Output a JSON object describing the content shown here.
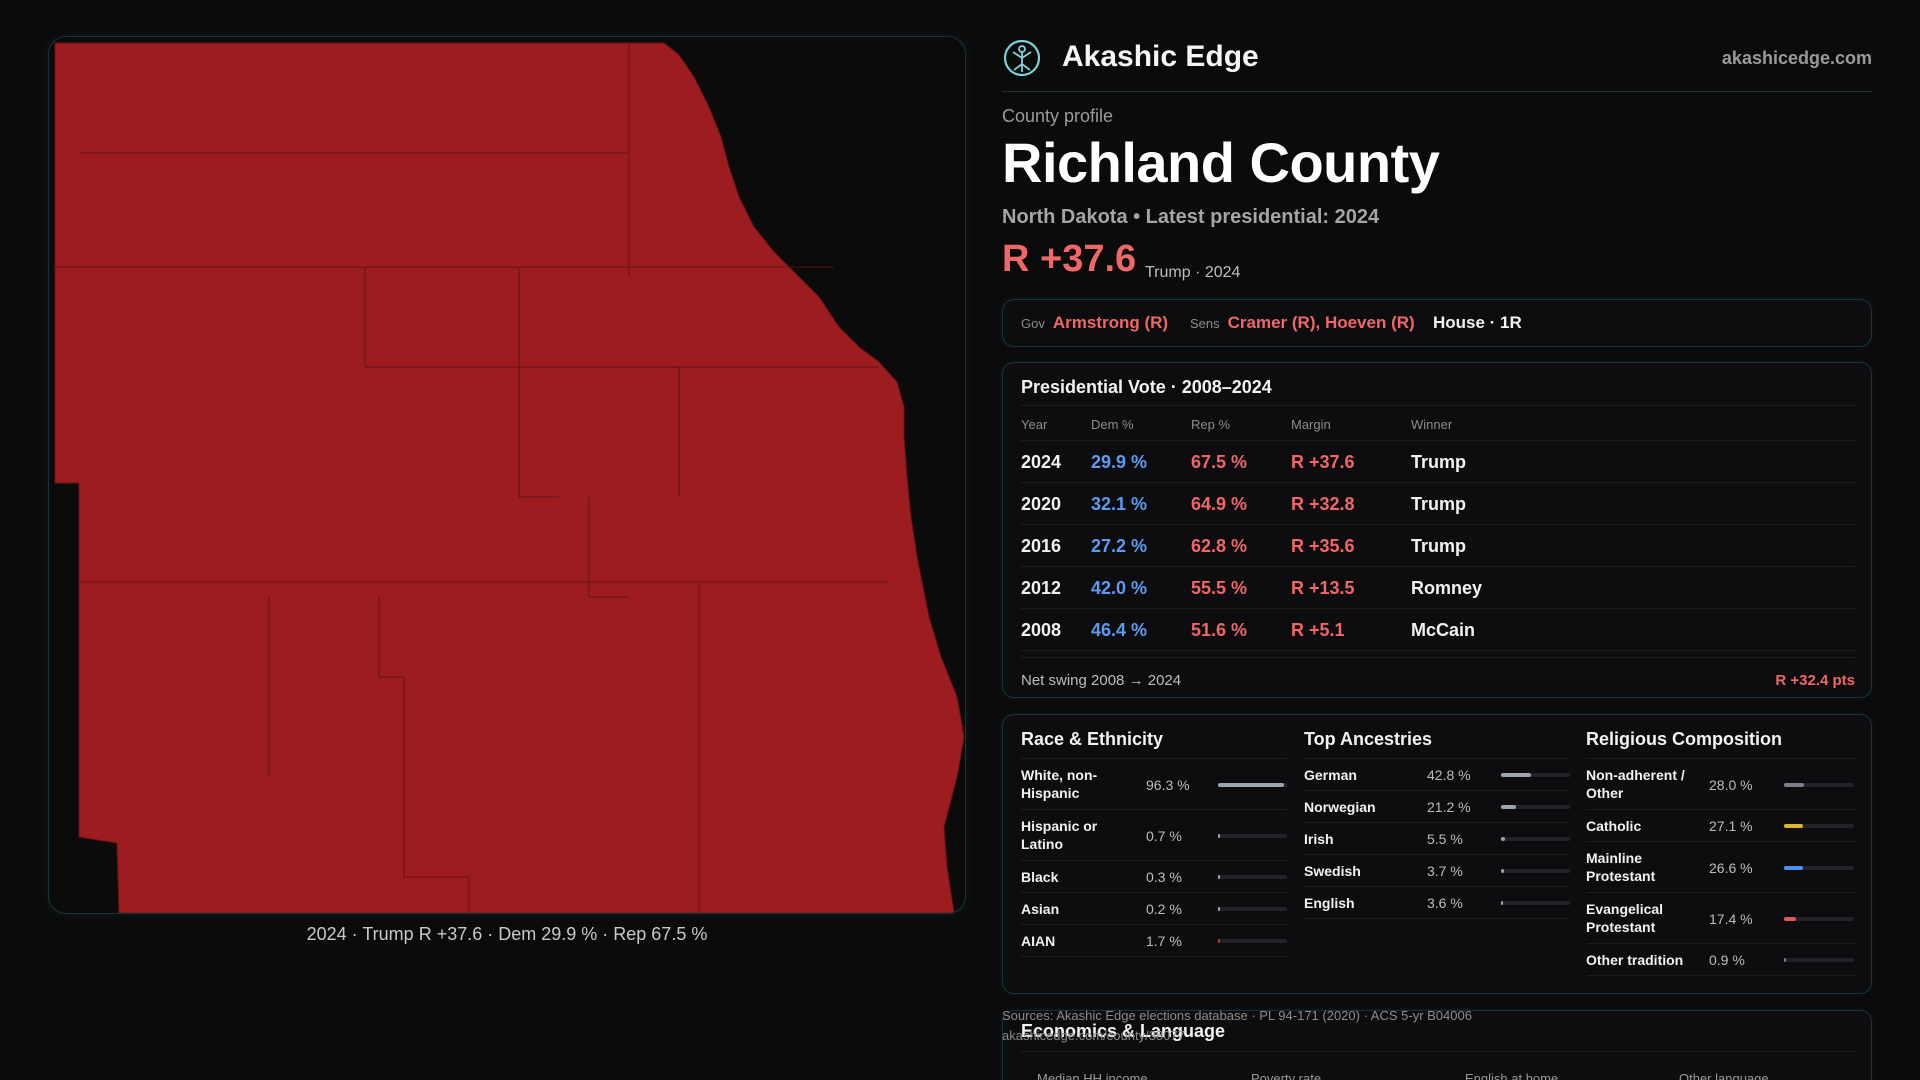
{
  "brand": {
    "name": "Akashic Edge",
    "url": "akashicedge.com",
    "logo_icon": "tree-of-life-icon"
  },
  "map": {
    "caption": "2024 · Trump R +37.6 · Dem 29.9 % · Rep 67.5 %",
    "fill_color": "#9c1c1f",
    "border_color": "#6b1416"
  },
  "profile": {
    "kicker": "County profile",
    "county": "Richland County",
    "subtitle": "North Dakota • Latest presidential: 2024",
    "margin": "R +37.6",
    "margin_meta": "Trump · 2024"
  },
  "officials": {
    "gov_label": "Gov",
    "gov": "Armstrong (R)",
    "sens_label": "Sens",
    "sens": "Cramer (R), Hoeven (R)",
    "house": "House · 1R"
  },
  "presidential": {
    "title": "Presidential Vote · 2008–2024",
    "headers": {
      "year": "Year",
      "dem": "Dem %",
      "rep": "Rep %",
      "margin": "Margin",
      "winner": "Winner"
    },
    "rows": [
      {
        "year": "2024",
        "dem": "29.9 %",
        "rep": "67.5 %",
        "margin": "R +37.6",
        "winner": "Trump"
      },
      {
        "year": "2020",
        "dem": "32.1 %",
        "rep": "64.9 %",
        "margin": "R +32.8",
        "winner": "Trump"
      },
      {
        "year": "2016",
        "dem": "27.2 %",
        "rep": "62.8 %",
        "margin": "R +35.6",
        "winner": "Trump"
      },
      {
        "year": "2012",
        "dem": "42.0 %",
        "rep": "55.5 %",
        "margin": "R +13.5",
        "winner": "Romney"
      },
      {
        "year": "2008",
        "dem": "46.4 %",
        "rep": "51.6 %",
        "margin": "R +5.1",
        "winner": "McCain"
      }
    ],
    "swing_label": "Net swing 2008 → 2024",
    "swing_value": "R +32.4 pts"
  },
  "race": {
    "title": "Race & Ethnicity",
    "rows": [
      {
        "label": "White, non-Hispanic",
        "pct": "96.3 %",
        "value": 96.3,
        "color": "#9ea3b0"
      },
      {
        "label": "Hispanic or Latino",
        "pct": "0.7 %",
        "value": 0.7,
        "color": "#9ea3b0"
      },
      {
        "label": "Black",
        "pct": "0.3 %",
        "value": 0.3,
        "color": "#9ea3b0"
      },
      {
        "label": "Asian",
        "pct": "0.2 %",
        "value": 0.2,
        "color": "#9ea3b0"
      },
      {
        "label": "AIAN",
        "pct": "1.7 %",
        "value": 1.7,
        "color": "#c0392b"
      }
    ]
  },
  "ancestry": {
    "title": "Top Ancestries",
    "rows": [
      {
        "label": "German",
        "pct": "42.8 %",
        "value": 42.8,
        "color": "#9ea3b0"
      },
      {
        "label": "Norwegian",
        "pct": "21.2 %",
        "value": 21.2,
        "color": "#9ea3b0"
      },
      {
        "label": "Irish",
        "pct": "5.5 %",
        "value": 5.5,
        "color": "#9ea3b0"
      },
      {
        "label": "Swedish",
        "pct": "3.7 %",
        "value": 3.7,
        "color": "#9ea3b0"
      },
      {
        "label": "English",
        "pct": "3.6 %",
        "value": 3.6,
        "color": "#9ea3b0"
      }
    ]
  },
  "religion": {
    "title": "Religious Composition",
    "rows": [
      {
        "label": "Non-adherent / Other",
        "pct": "28.0 %",
        "value": 28.0,
        "color": "#7a7f8a"
      },
      {
        "label": "Catholic",
        "pct": "27.1 %",
        "value": 27.1,
        "color": "#e3b52a"
      },
      {
        "label": "Mainline Protestant",
        "pct": "26.6 %",
        "value": 26.6,
        "color": "#4f8ef0"
      },
      {
        "label": "Evangelical Protestant",
        "pct": "17.4 %",
        "value": 17.4,
        "color": "#e05a5a"
      },
      {
        "label": "Other tradition",
        "pct": "0.9 %",
        "value": 0.9,
        "color": "#7a7f8a"
      }
    ]
  },
  "sources": {
    "line1": "Sources: Akashic Edge elections database · PL 94-171 (2020) · ACS 5-yr B04006",
    "line2": "akashicedge.com/county/38077"
  },
  "economics": {
    "title": "Economics & Language",
    "labels": [
      "Median HH income",
      "Poverty rate",
      "English at home",
      "Other language"
    ]
  }
}
